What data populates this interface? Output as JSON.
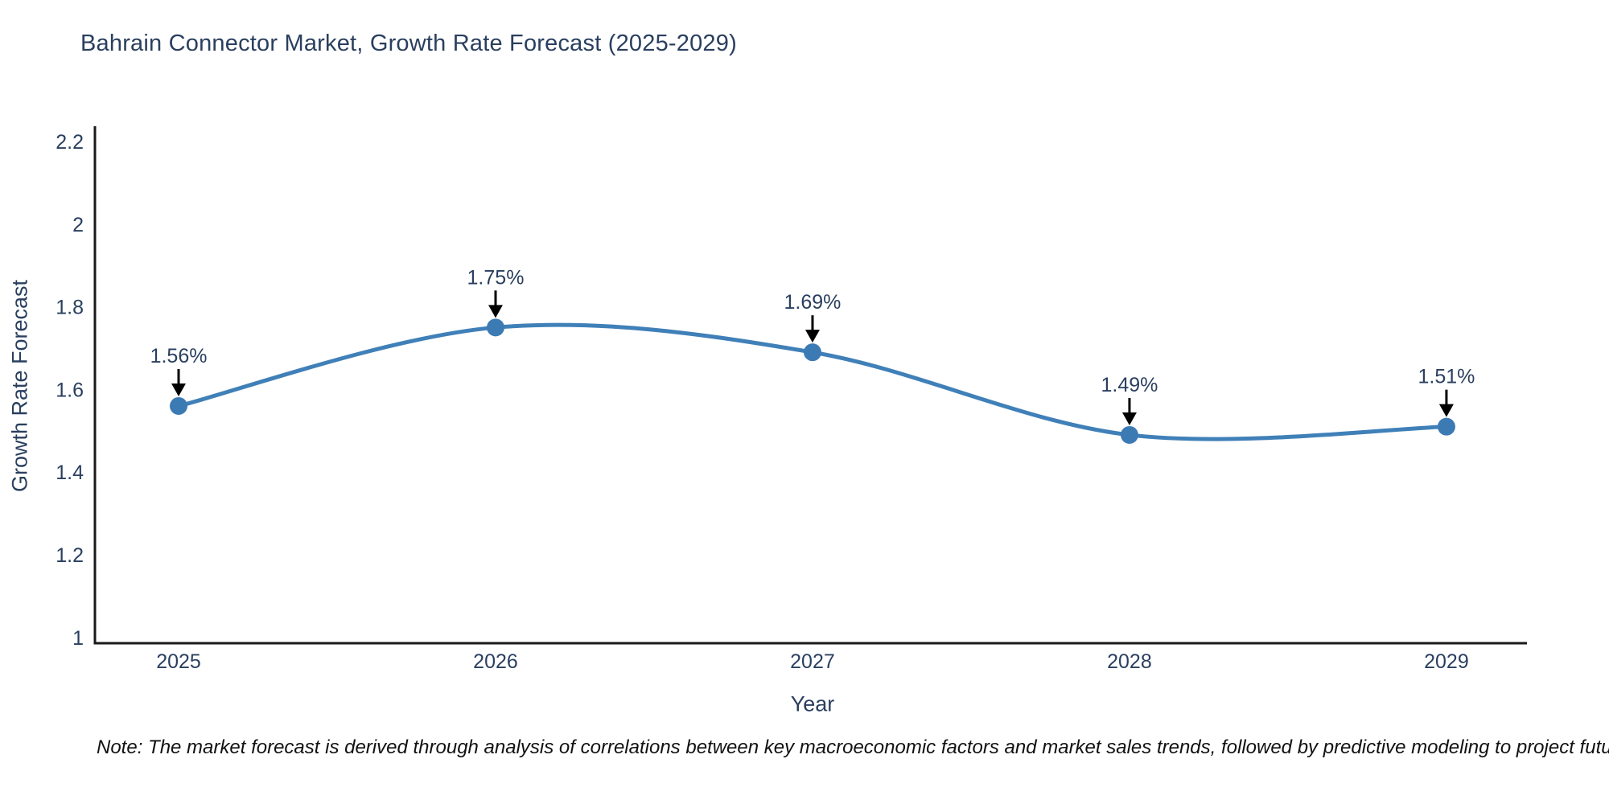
{
  "title": "Bahrain Connector Market, Growth Rate Forecast (2025-2029)",
  "note": "Note: The market forecast is derived through analysis of correlations between key macroeconomic factors and market sales trends, followed by predictive modeling to project future sales",
  "chart_data": {
    "type": "line",
    "line_shape": "spline",
    "title": "Bahrain Connector Market, Growth Rate Forecast (2025-2029)",
    "xlabel": "Year",
    "ylabel": "Growth Rate Forecast",
    "x": [
      2025,
      2026,
      2027,
      2028,
      2029
    ],
    "y": [
      1.56,
      1.75,
      1.69,
      1.49,
      1.51
    ],
    "point_labels": [
      "1.56%",
      "1.75%",
      "1.69%",
      "1.49%",
      "1.51%"
    ],
    "xtick_labels": [
      "2025",
      "2026",
      "2027",
      "2028",
      "2029"
    ],
    "ytick_values": [
      1,
      1.2,
      1.4,
      1.6,
      1.8,
      2,
      2.2
    ],
    "ytick_labels": [
      "1",
      "1.2",
      "1.4",
      "1.6",
      "1.8",
      "2",
      "2.2"
    ],
    "xlim": [
      2024.736,
      2029.254
    ],
    "ylim": [
      0.986,
      2.237
    ],
    "grid": false,
    "legend": "none",
    "colors": {
      "line": "#4080b8",
      "marker": "#3c7ab4",
      "annotation_text": "#2a3f5f",
      "annotation_arrow": "#000000",
      "axis_line": "#1a1a1a",
      "tick_text": "#2a3f5f",
      "title_text": "#2a3f5f",
      "background": "#ffffff"
    }
  }
}
